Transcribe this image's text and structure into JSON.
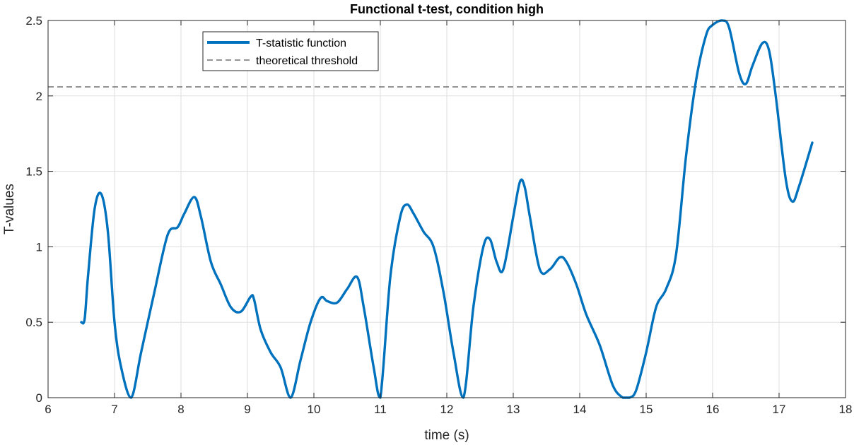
{
  "chart_data": {
    "type": "line",
    "title": "Functional t-test, condition high",
    "xlabel": "time (s)",
    "ylabel": "T-values",
    "xlim": [
      6,
      18
    ],
    "ylim": [
      0,
      2.5
    ],
    "xticks": [
      6,
      7,
      8,
      9,
      10,
      11,
      12,
      13,
      14,
      15,
      16,
      17,
      18
    ],
    "yticks": [
      0,
      0.5,
      1,
      1.5,
      2,
      2.5
    ],
    "grid": true,
    "legend_position": "top-left",
    "threshold": {
      "name": "theoretical threshold",
      "value": 2.06,
      "style": "dashed",
      "color": "#555555"
    },
    "series": [
      {
        "name": "T-statistic function",
        "color": "#0072BD",
        "x": [
          6.5,
          6.55,
          6.6,
          6.7,
          6.8,
          6.9,
          7.0,
          7.1,
          7.25,
          7.4,
          7.6,
          7.8,
          7.95,
          8.05,
          8.2,
          8.3,
          8.45,
          8.6,
          8.75,
          8.9,
          9.05,
          9.1,
          9.2,
          9.35,
          9.5,
          9.65,
          9.8,
          9.95,
          10.1,
          10.2,
          10.35,
          10.5,
          10.65,
          10.75,
          10.9,
          11.0,
          11.15,
          11.3,
          11.4,
          11.5,
          11.65,
          11.8,
          11.95,
          12.1,
          12.25,
          12.4,
          12.55,
          12.65,
          12.75,
          12.85,
          13.0,
          13.1,
          13.17,
          13.25,
          13.4,
          13.55,
          13.7,
          13.8,
          13.95,
          14.1,
          14.3,
          14.5,
          14.65,
          14.75,
          14.85,
          15.0,
          15.15,
          15.3,
          15.45,
          15.6,
          15.75,
          15.9,
          16.0,
          16.15,
          16.25,
          16.4,
          16.5,
          16.6,
          16.75,
          16.85,
          16.95,
          17.1,
          17.2,
          17.3,
          17.5
        ],
        "y": [
          0.5,
          0.52,
          0.8,
          1.25,
          1.35,
          1.1,
          0.5,
          0.2,
          0.0,
          0.3,
          0.7,
          1.08,
          1.13,
          1.22,
          1.33,
          1.2,
          0.9,
          0.75,
          0.6,
          0.57,
          0.67,
          0.65,
          0.45,
          0.3,
          0.2,
          0.0,
          0.25,
          0.5,
          0.66,
          0.64,
          0.63,
          0.72,
          0.8,
          0.6,
          0.2,
          0.0,
          0.8,
          1.2,
          1.28,
          1.22,
          1.1,
          1.0,
          0.7,
          0.3,
          0.0,
          0.6,
          1.0,
          1.05,
          0.9,
          0.85,
          1.2,
          1.43,
          1.4,
          1.2,
          0.85,
          0.85,
          0.93,
          0.9,
          0.75,
          0.55,
          0.35,
          0.08,
          0.0,
          0.0,
          0.05,
          0.3,
          0.6,
          0.72,
          0.95,
          1.6,
          2.1,
          2.4,
          2.47,
          2.5,
          2.45,
          2.15,
          2.08,
          2.2,
          2.35,
          2.3,
          2.0,
          1.45,
          1.3,
          1.4,
          1.69
        ]
      }
    ]
  }
}
